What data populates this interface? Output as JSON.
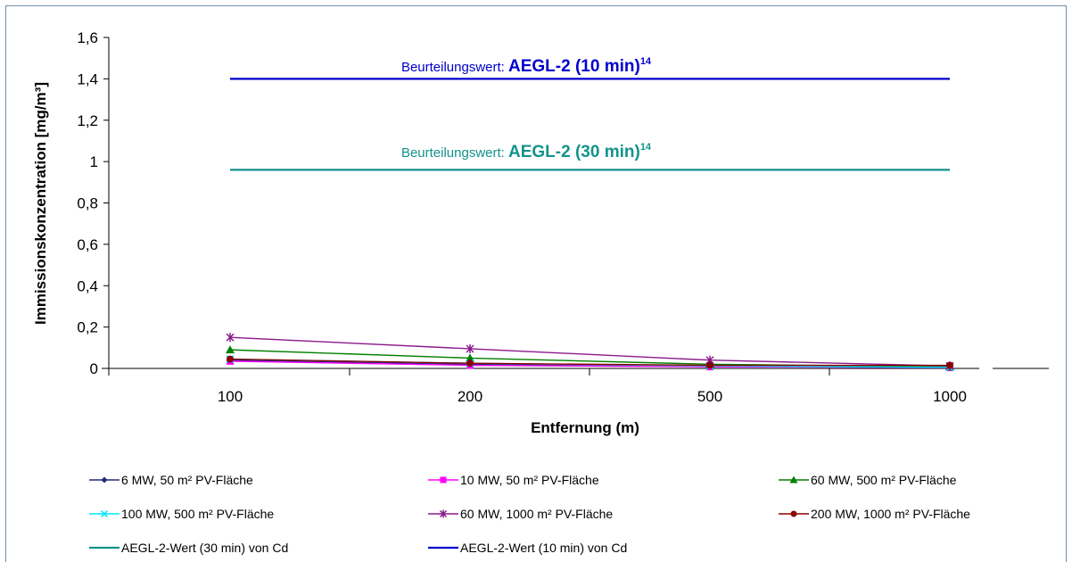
{
  "chart_data": {
    "type": "line",
    "xlabel": "Entfernung (m)",
    "ylabel": "Immissionskonzentration [mg/m³]",
    "categories": [
      "100",
      "200",
      "500",
      "1000"
    ],
    "ylim": [
      0,
      1.6
    ],
    "yticks": [
      "0",
      "0,2",
      "0,4",
      "0,6",
      "0,8",
      "1",
      "1,2",
      "1,4",
      "1,6"
    ],
    "ytick_values": [
      0,
      0.2,
      0.4,
      0.6,
      0.8,
      1.0,
      1.2,
      1.4,
      1.6
    ],
    "grid": false,
    "legend_position": "bottom",
    "series": [
      {
        "name": "6 MW, 50 m² PV-Fläche",
        "values": [
          0.04,
          0.02,
          0.01,
          0.005
        ],
        "color": "#1f2a7a",
        "marker": "diamond"
      },
      {
        "name": "10 MW, 50 m² PV-Fläche",
        "values": [
          0.035,
          0.015,
          0.008,
          0.004
        ],
        "color": "#ff00ff",
        "marker": "square"
      },
      {
        "name": "60 MW, 500 m² PV-Fläche",
        "values": [
          0.09,
          0.05,
          0.02,
          0.008
        ],
        "color": "#008000",
        "marker": "triangle"
      },
      {
        "name": "100 MW, 500 m² PV-Fläche",
        "values": [
          0.045,
          0.025,
          0.012,
          0.005
        ],
        "color": "#00e5ff",
        "marker": "x"
      },
      {
        "name": "60 MW, 1000 m² PV-Fläche",
        "values": [
          0.15,
          0.095,
          0.04,
          0.012
        ],
        "color": "#8b1a8b",
        "marker": "star"
      },
      {
        "name": "200 MW, 1000 m² PV-Fläche",
        "values": [
          0.045,
          0.025,
          0.015,
          0.015
        ],
        "color": "#8b0000",
        "marker": "circle"
      },
      {
        "name": "AEGL-2-Wert (30 min) von Cd",
        "values": [
          0.96,
          0.96,
          0.96,
          0.96
        ],
        "color": "#13938a",
        "marker": "none"
      },
      {
        "name": "AEGL-2-Wert (10 min) von Cd",
        "values": [
          1.4,
          1.4,
          1.4,
          1.4
        ],
        "color": "#0000cc",
        "marker": "none"
      }
    ],
    "annotations": [
      {
        "prefix": "Beurteilungswert:",
        "label": "AEGL-2 (10 min)",
        "sup": "14",
        "color": "#0000cc"
      },
      {
        "prefix": "Beurteilungswert:",
        "label": "AEGL-2 (30 min)",
        "sup": "14",
        "color": "#13938a"
      }
    ]
  }
}
